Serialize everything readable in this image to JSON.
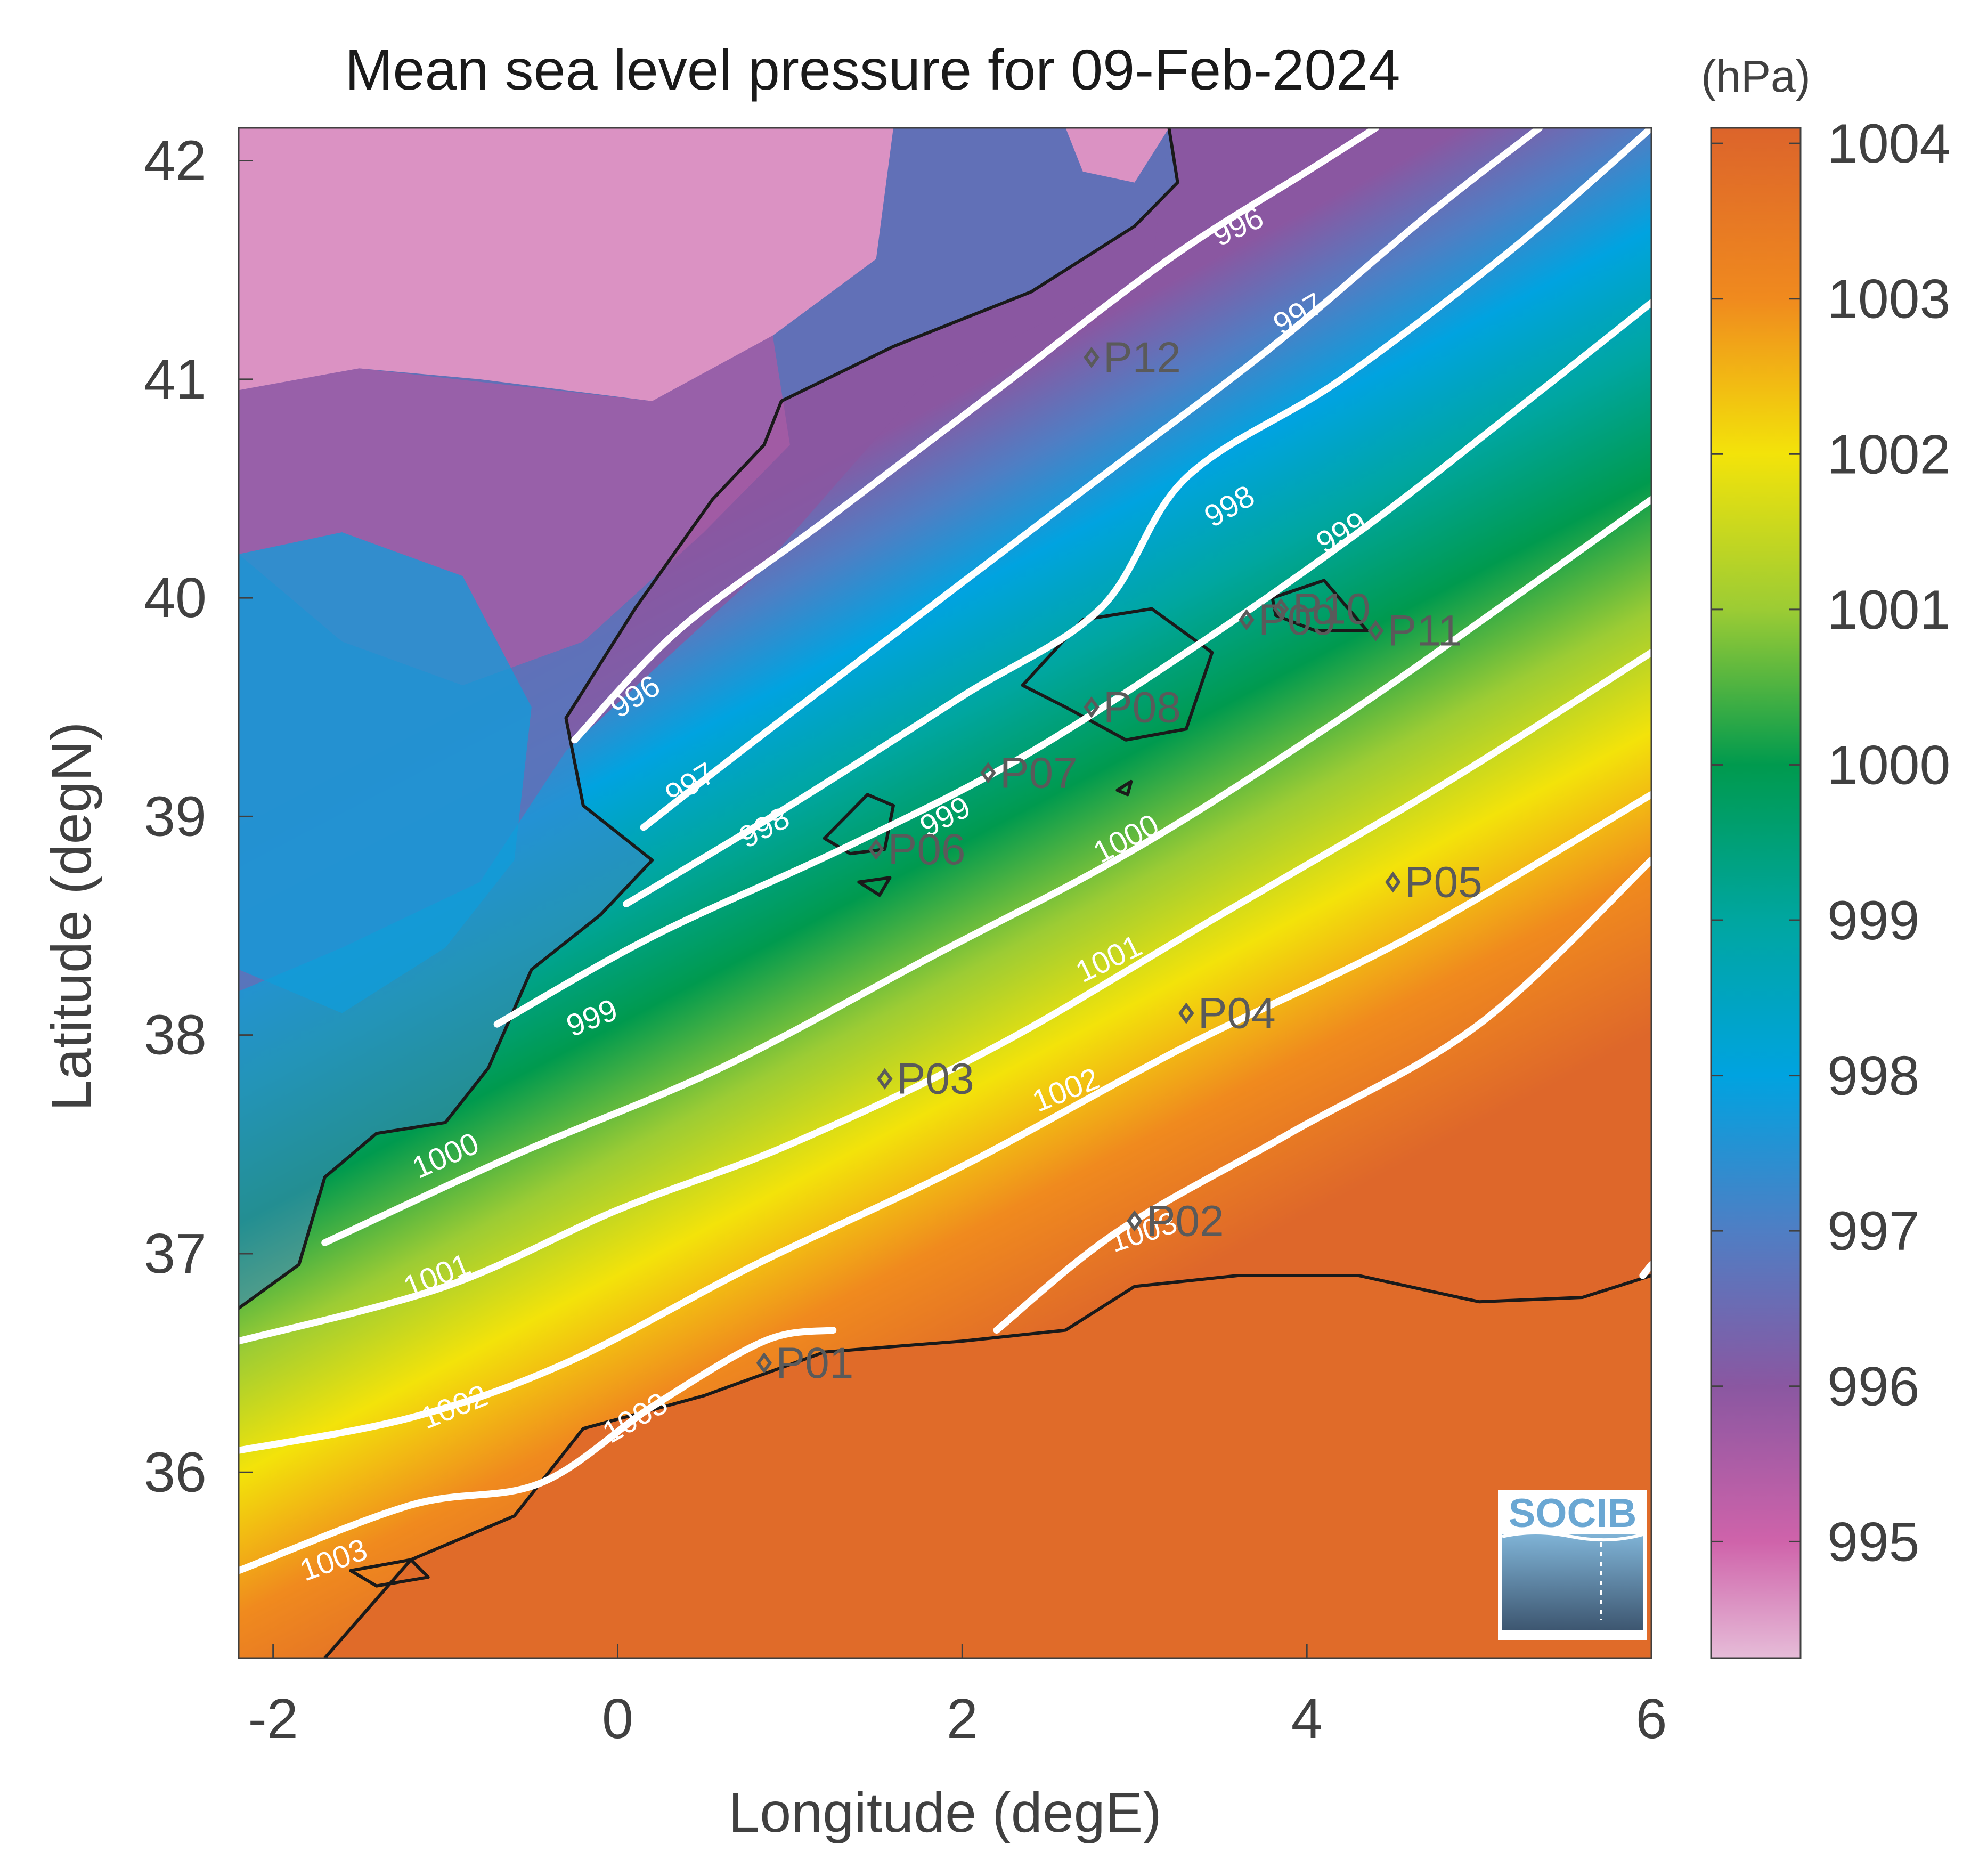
{
  "title": "Mean sea level pressure for 09-Feb-2024",
  "xlabel": "Longitude (degE)",
  "ylabel": "Latitude (degN)",
  "colorbar_unit": "(hPa)",
  "x_ticks": [
    "-2",
    "0",
    "2",
    "4",
    "6"
  ],
  "y_ticks": [
    "36",
    "37",
    "38",
    "39",
    "40",
    "41",
    "42"
  ],
  "colorbar_ticks": [
    "995",
    "996",
    "997",
    "998",
    "999",
    "1000",
    "1001",
    "1002",
    "1003",
    "1004"
  ],
  "logo_text": "SOCIB",
  "chart_data": {
    "type": "heatmap",
    "title": "Mean sea level pressure for 09-Feb-2024",
    "xlabel": "Longitude (degE)",
    "ylabel": "Latitude (degN)",
    "colorbar_label": "(hPa)",
    "xlim": [
      -2.2,
      6.0
    ],
    "ylim": [
      35.15,
      42.15
    ],
    "clim": [
      994.25,
      1004.1
    ],
    "colorscale": [
      {
        "value": 994.25,
        "color": "#e6bcd8"
      },
      {
        "value": 995.0,
        "color": "#cf63aa"
      },
      {
        "value": 996.0,
        "color": "#8a57a1"
      },
      {
        "value": 997.0,
        "color": "#4f7ec4"
      },
      {
        "value": 998.0,
        "color": "#00a3e0"
      },
      {
        "value": 999.0,
        "color": "#00a6a0"
      },
      {
        "value": 1000.0,
        "color": "#009a4e"
      },
      {
        "value": 1001.0,
        "color": "#9ccc34"
      },
      {
        "value": 1002.0,
        "color": "#f3e30a"
      },
      {
        "value": 1003.0,
        "color": "#f08a1e"
      },
      {
        "value": 1004.1,
        "color": "#dc642b"
      }
    ],
    "contours": [
      {
        "level": "996",
        "points": [
          [
            -0.25,
            39.35
          ],
          [
            0.35,
            39.85
          ],
          [
            1.2,
            40.35
          ],
          [
            2.2,
            40.95
          ],
          [
            3.2,
            41.55
          ],
          [
            4.0,
            41.95
          ],
          [
            4.4,
            42.15
          ]
        ]
      },
      {
        "level": "997",
        "points": [
          [
            0.15,
            38.95
          ],
          [
            0.8,
            39.35
          ],
          [
            1.8,
            39.95
          ],
          [
            2.8,
            40.55
          ],
          [
            3.8,
            41.15
          ],
          [
            4.7,
            41.75
          ],
          [
            5.35,
            42.15
          ]
        ]
      },
      {
        "level": "998",
        "points": [
          [
            0.05,
            38.6
          ],
          [
            1.0,
            39.05
          ],
          [
            2.0,
            39.55
          ],
          [
            2.8,
            39.95
          ],
          [
            3.3,
            40.55
          ],
          [
            4.2,
            41.0
          ],
          [
            5.2,
            41.6
          ],
          [
            6.0,
            42.15
          ]
        ]
      },
      {
        "level": "999",
        "points": [
          [
            -0.7,
            38.05
          ],
          [
            0.2,
            38.45
          ],
          [
            1.3,
            38.85
          ],
          [
            2.3,
            39.25
          ],
          [
            3.3,
            39.75
          ],
          [
            4.3,
            40.3
          ],
          [
            5.2,
            40.85
          ],
          [
            6.0,
            41.35
          ]
        ]
      },
      {
        "level": "1000",
        "points": [
          [
            -1.7,
            37.05
          ],
          [
            -0.6,
            37.45
          ],
          [
            0.6,
            37.85
          ],
          [
            1.8,
            38.35
          ],
          [
            3.0,
            38.85
          ],
          [
            4.2,
            39.45
          ],
          [
            5.2,
            40.0
          ],
          [
            6.0,
            40.45
          ]
        ]
      },
      {
        "level": "1001",
        "points": [
          [
            -2.2,
            36.6
          ],
          [
            -1.0,
            36.85
          ],
          [
            0.0,
            37.2
          ],
          [
            1.0,
            37.5
          ],
          [
            2.2,
            37.95
          ],
          [
            3.5,
            38.55
          ],
          [
            4.8,
            39.15
          ],
          [
            6.0,
            39.75
          ]
        ]
      },
      {
        "level": "1002",
        "points": [
          [
            -2.2,
            36.1
          ],
          [
            -1.2,
            36.25
          ],
          [
            -0.3,
            36.5
          ],
          [
            0.8,
            36.95
          ],
          [
            2.0,
            37.4
          ],
          [
            3.3,
            37.95
          ],
          [
            4.6,
            38.45
          ],
          [
            6.0,
            39.1
          ]
        ]
      },
      {
        "level": "1003",
        "points": [
          [
            -2.2,
            35.55
          ],
          [
            -1.2,
            35.85
          ],
          [
            -0.45,
            35.95
          ],
          [
            0.2,
            36.3
          ],
          [
            0.85,
            36.6
          ],
          [
            1.25,
            36.65
          ]
        ]
      },
      {
        "level": "1003",
        "points": [
          [
            2.2,
            36.65
          ],
          [
            2.9,
            37.1
          ],
          [
            3.9,
            37.55
          ],
          [
            5.0,
            38.05
          ],
          [
            6.0,
            38.8
          ]
        ]
      },
      {
        "level": "1003",
        "points": [
          [
            5.95,
            36.9
          ],
          [
            6.0,
            36.95
          ]
        ]
      }
    ],
    "contour_labels": [
      {
        "text": "996",
        "lon": 0.1,
        "lat": 39.55,
        "angle": -32
      },
      {
        "text": "997",
        "lon": 0.42,
        "lat": 39.15,
        "angle": -32
      },
      {
        "text": "998",
        "lon": 0.85,
        "lat": 38.95,
        "angle": -28
      },
      {
        "text": "999",
        "lon": 1.9,
        "lat": 39.0,
        "angle": -28
      },
      {
        "text": "1000",
        "lon": 2.95,
        "lat": 38.9,
        "angle": -28
      },
      {
        "text": "999",
        "lon": -0.15,
        "lat": 38.08,
        "angle": -22
      },
      {
        "text": "1000",
        "lon": -1.0,
        "lat": 37.45,
        "angle": -24
      },
      {
        "text": "1001",
        "lon": 2.85,
        "lat": 38.35,
        "angle": -26
      },
      {
        "text": "1001",
        "lon": -1.05,
        "lat": 36.9,
        "angle": -22
      },
      {
        "text": "1002",
        "lon": 2.6,
        "lat": 37.75,
        "angle": -22
      },
      {
        "text": "1002",
        "lon": -0.95,
        "lat": 36.3,
        "angle": -22
      },
      {
        "text": "1003",
        "lon": 0.1,
        "lat": 36.25,
        "angle": -30
      },
      {
        "text": "1003",
        "lon": -1.65,
        "lat": 35.6,
        "angle": -20
      },
      {
        "text": "1003",
        "lon": 3.05,
        "lat": 37.1,
        "angle": -18
      },
      {
        "text": "996",
        "lon": 3.6,
        "lat": 41.7,
        "angle": -25
      },
      {
        "text": "997",
        "lon": 3.95,
        "lat": 41.3,
        "angle": -30
      },
      {
        "text": "998",
        "lon": 3.55,
        "lat": 40.42,
        "angle": -30
      },
      {
        "text": "999",
        "lon": 4.2,
        "lat": 40.3,
        "angle": -30
      }
    ],
    "stations": [
      {
        "name": "P01",
        "lon": 0.85,
        "lat": 36.5
      },
      {
        "name": "P02",
        "lon": 3.0,
        "lat": 37.15
      },
      {
        "name": "P03",
        "lon": 1.55,
        "lat": 37.8
      },
      {
        "name": "P04",
        "lon": 3.3,
        "lat": 38.1
      },
      {
        "name": "P05",
        "lon": 4.5,
        "lat": 38.7
      },
      {
        "name": "P06",
        "lon": 1.5,
        "lat": 38.85
      },
      {
        "name": "P07",
        "lon": 2.15,
        "lat": 39.2
      },
      {
        "name": "P08",
        "lon": 2.75,
        "lat": 39.5
      },
      {
        "name": "P09",
        "lon": 3.65,
        "lat": 39.9
      },
      {
        "name": "P10",
        "lon": 3.85,
        "lat": 39.95
      },
      {
        "name": "P11",
        "lon": 4.4,
        "lat": 39.85
      },
      {
        "name": "P12",
        "lon": 2.75,
        "lat": 41.1
      }
    ]
  }
}
